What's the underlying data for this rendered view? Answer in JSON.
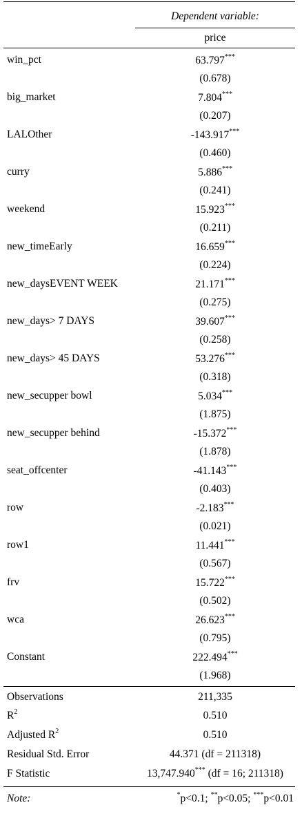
{
  "header": {
    "dependent_variable": "Dependent variable:",
    "column_name": "price"
  },
  "rows": [
    {
      "label": "win_pct",
      "coef": "63.797",
      "stars": "***",
      "se": "(0.678)"
    },
    {
      "label": "big_market",
      "coef": "7.804",
      "stars": "***",
      "se": "(0.207)"
    },
    {
      "label": "LALOther",
      "coef": "-143.917",
      "stars": "***",
      "se": "(0.460)"
    },
    {
      "label": "curry",
      "coef": "5.886",
      "stars": "***",
      "se": "(0.241)"
    },
    {
      "label": "weekend",
      "coef": "15.923",
      "stars": "***",
      "se": "(0.211)"
    },
    {
      "label": "new_timeEarly",
      "coef": "16.659",
      "stars": "***",
      "se": "(0.224)"
    },
    {
      "label": "new_daysEVENT WEEK",
      "coef": "21.171",
      "stars": "***",
      "se": "(0.275)"
    },
    {
      "label": "new_days> 7 DAYS",
      "coef": "39.607",
      "stars": "***",
      "se": "(0.258)"
    },
    {
      "label": "new_days> 45 DAYS",
      "coef": "53.276",
      "stars": "***",
      "se": "(0.318)"
    },
    {
      "label": "new_secupper bowl",
      "coef": "5.034",
      "stars": "***",
      "se": "(1.875)"
    },
    {
      "label": "new_secupper behind",
      "coef": "-15.372",
      "stars": "***",
      "se": "(1.878)"
    },
    {
      "label": "seat_offcenter",
      "coef": "-41.143",
      "stars": "***",
      "se": "(0.403)"
    },
    {
      "label": "row",
      "coef": "-2.183",
      "stars": "***",
      "se": "(0.021)"
    },
    {
      "label": "row1",
      "coef": "11.441",
      "stars": "***",
      "se": "(0.567)"
    },
    {
      "label": "frv",
      "coef": "15.722",
      "stars": "***",
      "se": "(0.502)"
    },
    {
      "label": "wca",
      "coef": "26.623",
      "stars": "***",
      "se": "(0.795)"
    },
    {
      "label": "Constant",
      "coef": "222.494",
      "stars": "***",
      "se": "(1.968)"
    }
  ],
  "stats": {
    "observations_label": "Observations",
    "observations_value": "211,335",
    "r2_label": "R",
    "r2_sup": "2",
    "r2_value": "0.510",
    "adj_r2_label": "Adjusted R",
    "adj_r2_sup": "2",
    "adj_r2_value": "0.510",
    "rse_label": "Residual Std. Error",
    "rse_value": "44.371 (df = 211318)",
    "f_label": "F Statistic",
    "f_value": "13,747.940",
    "f_stars": "***",
    "f_df": " (df = 16; 211318)"
  },
  "note": {
    "label": "Note:",
    "s1": "*",
    "t1": "p<0.1; ",
    "s2": "**",
    "t2": "p<0.05; ",
    "s3": "***",
    "t3": "p<0.01"
  }
}
